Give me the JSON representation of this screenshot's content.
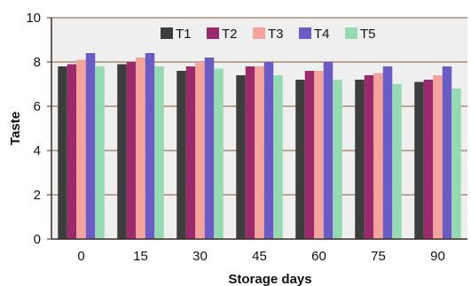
{
  "chart_data": {
    "type": "bar",
    "title": "",
    "xlabel": "Storage days",
    "ylabel": "Taste",
    "categories": [
      "0",
      "15",
      "30",
      "45",
      "60",
      "75",
      "90"
    ],
    "ylim": [
      0,
      10
    ],
    "yticks": [
      "0",
      "2",
      "4",
      "6",
      "8",
      "10"
    ],
    "grid": "horizontal",
    "legend_position": "top-right",
    "series": [
      {
        "name": "T1",
        "color": "#3d3d3d",
        "values": [
          7.8,
          7.9,
          7.6,
          7.4,
          7.2,
          7.2,
          7.1
        ]
      },
      {
        "name": "T2",
        "color": "#9b2a6a",
        "values": [
          7.9,
          8.0,
          7.8,
          7.8,
          7.6,
          7.4,
          7.2
        ]
      },
      {
        "name": "T3",
        "color": "#f4a49c",
        "values": [
          8.1,
          8.2,
          8.0,
          7.8,
          7.6,
          7.5,
          7.4
        ]
      },
      {
        "name": "T4",
        "color": "#6a5cc4",
        "values": [
          8.4,
          8.4,
          8.2,
          8.0,
          8.0,
          7.8,
          7.8
        ]
      },
      {
        "name": "T5",
        "color": "#96dab4",
        "values": [
          7.8,
          7.8,
          7.7,
          7.4,
          7.2,
          7.0,
          6.8
        ]
      }
    ]
  },
  "colors": {
    "plot_background": "#efefef",
    "axis": "#3a2a28",
    "gridline": "#8a5a3a"
  }
}
